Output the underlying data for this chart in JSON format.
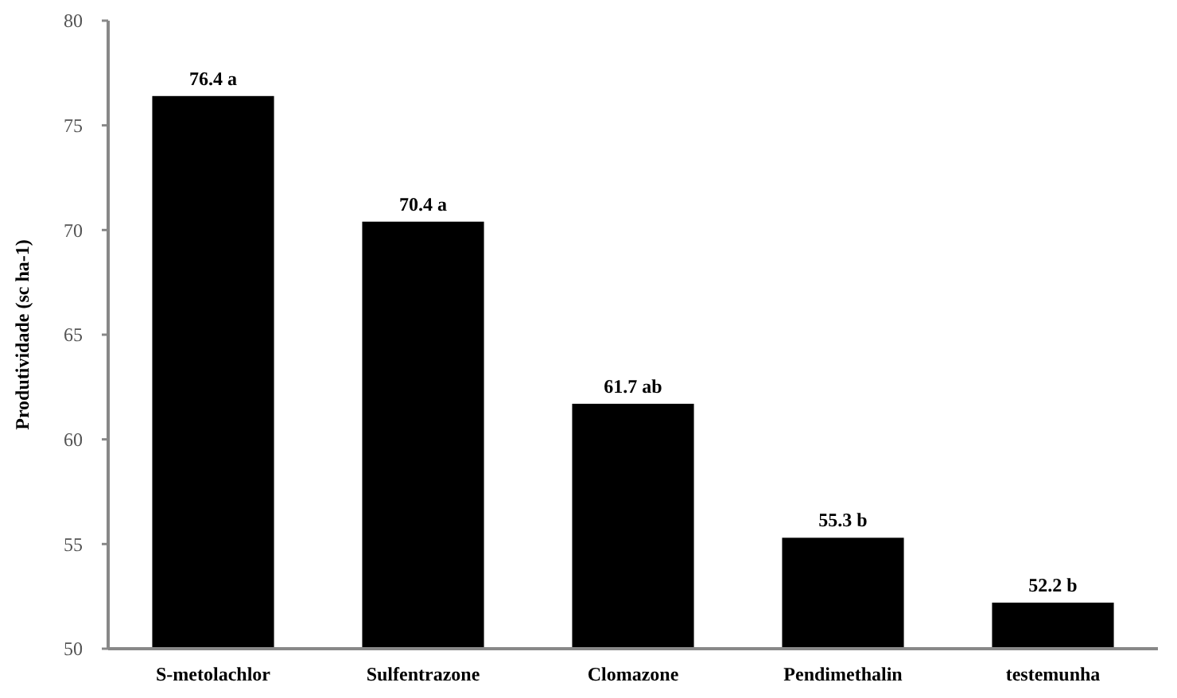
{
  "chart_data": {
    "type": "bar",
    "ylabel": "Produtividade (sc ha-1)",
    "categories": [
      "S-metolachlor",
      "Sulfentrazone",
      "Clomazone",
      "Pendimethalin",
      "testemunha"
    ],
    "values": [
      76.4,
      70.4,
      61.7,
      55.3,
      52.2
    ],
    "value_labels": [
      "76.4 a",
      "70.4 a",
      "61.7 ab",
      "55.3 b",
      "52.2 b"
    ],
    "color": "#000000",
    "ylim": [
      50,
      80
    ],
    "yticks": [
      50,
      55,
      60,
      65,
      70,
      75,
      80
    ],
    "grid": false
  }
}
